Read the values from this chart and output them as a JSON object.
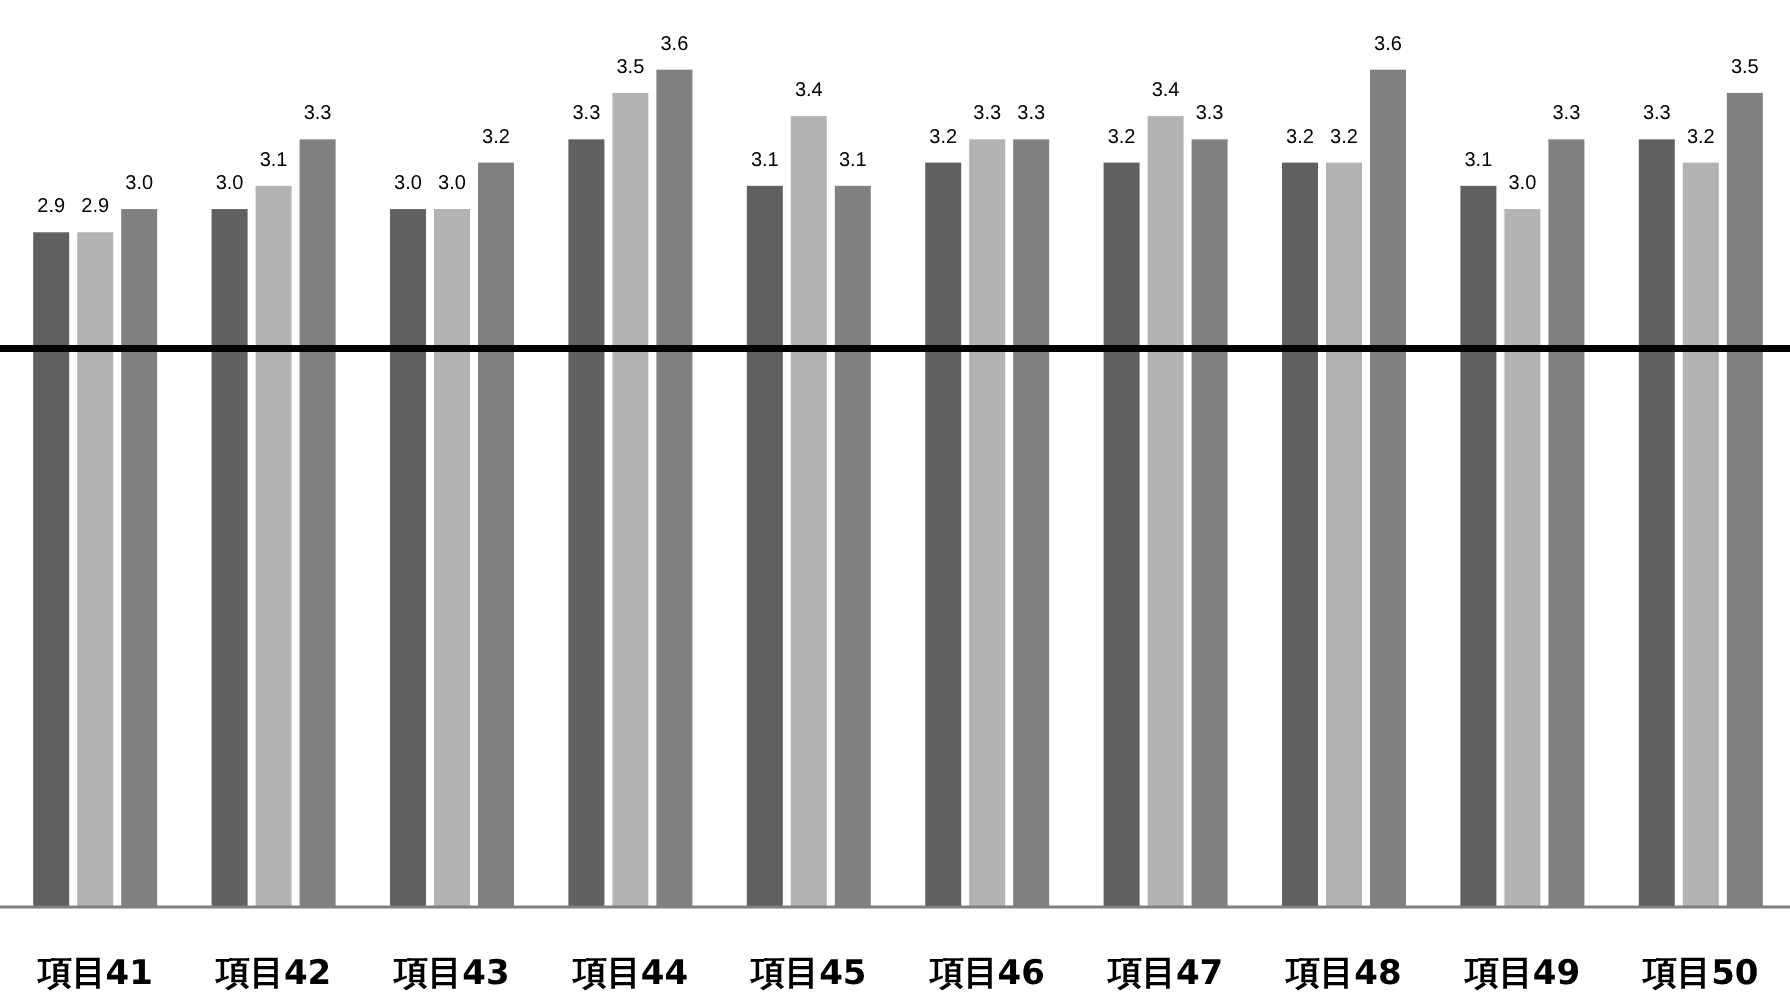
{
  "chart_data": {
    "type": "bar",
    "categories": [
      "項目41",
      "項目42",
      "項目43",
      "項目44",
      "項目45",
      "項目46",
      "項目47",
      "項目48",
      "項目49",
      "項目50"
    ],
    "series": [
      {
        "color": "#606060",
        "values": [
          2.9,
          3.0,
          3.0,
          3.3,
          3.1,
          3.2,
          3.2,
          3.2,
          3.1,
          3.3
        ],
        "value_labels": [
          "2.9",
          "3.0",
          "3.0",
          "3.3",
          "3.1",
          "3.2",
          "3.2",
          "3.2",
          "3.1",
          "3.3"
        ]
      },
      {
        "color": "#b3b3b3",
        "values": [
          2.9,
          3.1,
          3.0,
          3.5,
          3.4,
          3.3,
          3.4,
          3.2,
          3.0,
          3.2
        ],
        "value_labels": [
          "2.9",
          "3.1",
          "3.0",
          "3.5",
          "3.4",
          "3.3",
          "3.4",
          "3.2",
          "3.0",
          "3.2"
        ]
      },
      {
        "color": "#808080",
        "values": [
          3.0,
          3.3,
          3.2,
          3.6,
          3.1,
          3.3,
          3.3,
          3.6,
          3.3,
          3.5
        ],
        "value_labels": [
          "3.0",
          "3.3",
          "3.2",
          "3.6",
          "3.1",
          "3.3",
          "3.3",
          "3.6",
          "3.3",
          "3.5"
        ]
      }
    ],
    "tick_labels": "x",
    "ref_lines": [
      {
        "axis": "y",
        "value": 2.4,
        "color": "#000000"
      }
    ]
  }
}
